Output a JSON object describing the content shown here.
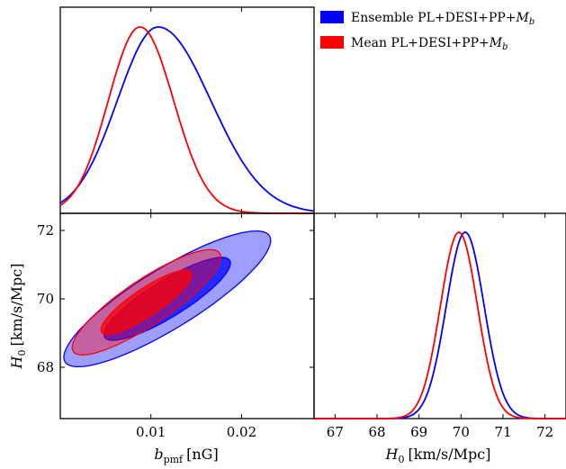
{
  "chart_data": {
    "type": "corner-plot",
    "legend": {
      "placement": "top-right",
      "entries": [
        {
          "label": "Ensemble PL+DESI+PP+",
          "label_math": "M",
          "label_sub": "b",
          "color": "#0000ff"
        },
        {
          "label": "Mean PL+DESI+PP+",
          "label_math": "M",
          "label_sub": "b",
          "color": "#ff0000"
        }
      ]
    },
    "params": {
      "b_pmf": {
        "label": "b",
        "label_sub": "pmf",
        "label_unit": "[nG]",
        "range": [
          0.0,
          0.028
        ],
        "ticks": [
          0.01,
          0.02
        ],
        "tick_labels": [
          "0.01",
          "0.02"
        ]
      },
      "H0": {
        "label": "H",
        "label_sub": "0",
        "label_unit": "[km/s/Mpc]",
        "range": [
          66.5,
          72.5
        ],
        "ticks_x": [
          67,
          68,
          69,
          70,
          71,
          72
        ],
        "tick_labels_x": [
          "67",
          "68",
          "69",
          "70",
          "71",
          "72"
        ],
        "ticks_y": [
          68,
          70,
          72
        ],
        "tick_labels_y": [
          "68",
          "70",
          "72"
        ]
      }
    },
    "series": [
      {
        "name": "Ensemble PL+DESI+PP+Mb",
        "color": "#0000ff",
        "b_pmf_marginal": {
          "mode": 0.0108,
          "sigma_left": 0.0045,
          "sigma_right": 0.0058
        },
        "H0_marginal": {
          "mean": 70.1,
          "sigma": 0.45
        },
        "contours_2d": {
          "center": [
            0.0118,
            70.0
          ],
          "rho": 0.86,
          "sig_b": 0.0046,
          "sig_h": 0.8
        }
      },
      {
        "name": "Mean PL+DESI+PP+Mb",
        "color": "#ff0000",
        "b_pmf_marginal": {
          "mode": 0.0088,
          "sigma_left": 0.0035,
          "sigma_right": 0.0037
        },
        "H0_marginal": {
          "mean": 69.95,
          "sigma": 0.44
        },
        "contours_2d": {
          "center": [
            0.0095,
            69.9
          ],
          "rho": 0.86,
          "sig_b": 0.0033,
          "sig_h": 0.62
        }
      }
    ]
  }
}
